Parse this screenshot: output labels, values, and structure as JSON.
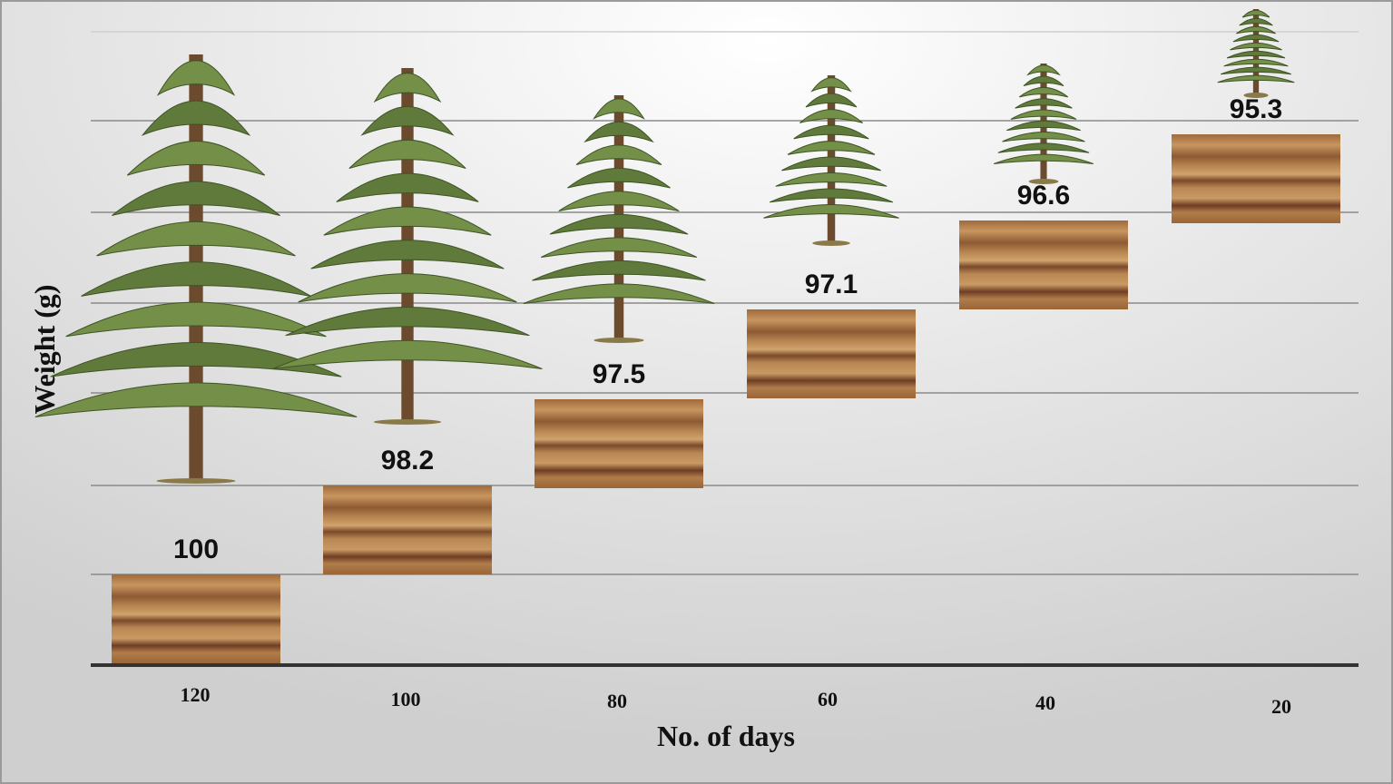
{
  "chart_data": {
    "type": "bar",
    "xlabel": "No. of days",
    "ylabel": "Weight (g)",
    "categories": [
      "120",
      "100",
      "80",
      "60",
      "40",
      "20"
    ],
    "values": [
      100,
      98.2,
      97.5,
      97.1,
      96.6,
      95.3
    ]
  }
}
